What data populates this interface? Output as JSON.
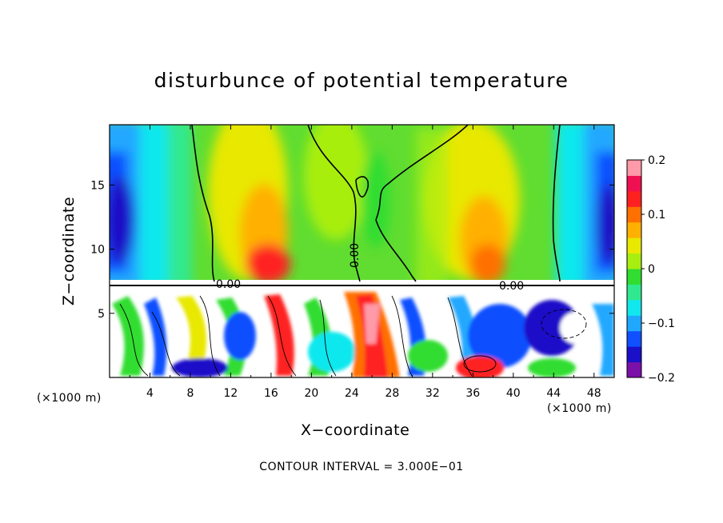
{
  "chart_data": {
    "type": "heatmap",
    "title": "disturbunce of potential temperature",
    "xlabel": "X−coordinate",
    "ylabel": "Z−coordinate",
    "x_unit_label": "(×1000 m)",
    "x_unit_label_right": "(×1000 m)",
    "xlim": [
      0,
      50
    ],
    "ylim": [
      0,
      19.7
    ],
    "x_ticks": [
      4,
      8,
      12,
      16,
      20,
      24,
      28,
      32,
      36,
      40,
      44,
      48
    ],
    "y_ticks": [
      5,
      10,
      15
    ],
    "colorbar": {
      "range": [
        -0.2,
        0.2
      ],
      "ticks": [
        {
          "value": 0.2,
          "label": "0.2"
        },
        {
          "value": 0.1,
          "label": "0.1"
        },
        {
          "value": 0,
          "label": "0"
        },
        {
          "value": -0.1,
          "label": "−0.1"
        },
        {
          "value": -0.2,
          "label": "−0.2"
        }
      ],
      "colors": [
        "#7a10a8",
        "#1a10c8",
        "#1050ff",
        "#20a8ff",
        "#10e8ee",
        "#30e890",
        "#30dd30",
        "#a8ee10",
        "#e8e800",
        "#ffb000",
        "#ff7000",
        "#ff2020",
        "#ee1050",
        "#ff9aa8"
      ]
    },
    "contour_labels": [
      "0.00",
      "0.00",
      "0.00"
    ],
    "grid": false,
    "legend": "colorbar right"
  },
  "footer": {
    "contour_interval": "CONTOUR INTERVAL = 3.000E−01"
  }
}
